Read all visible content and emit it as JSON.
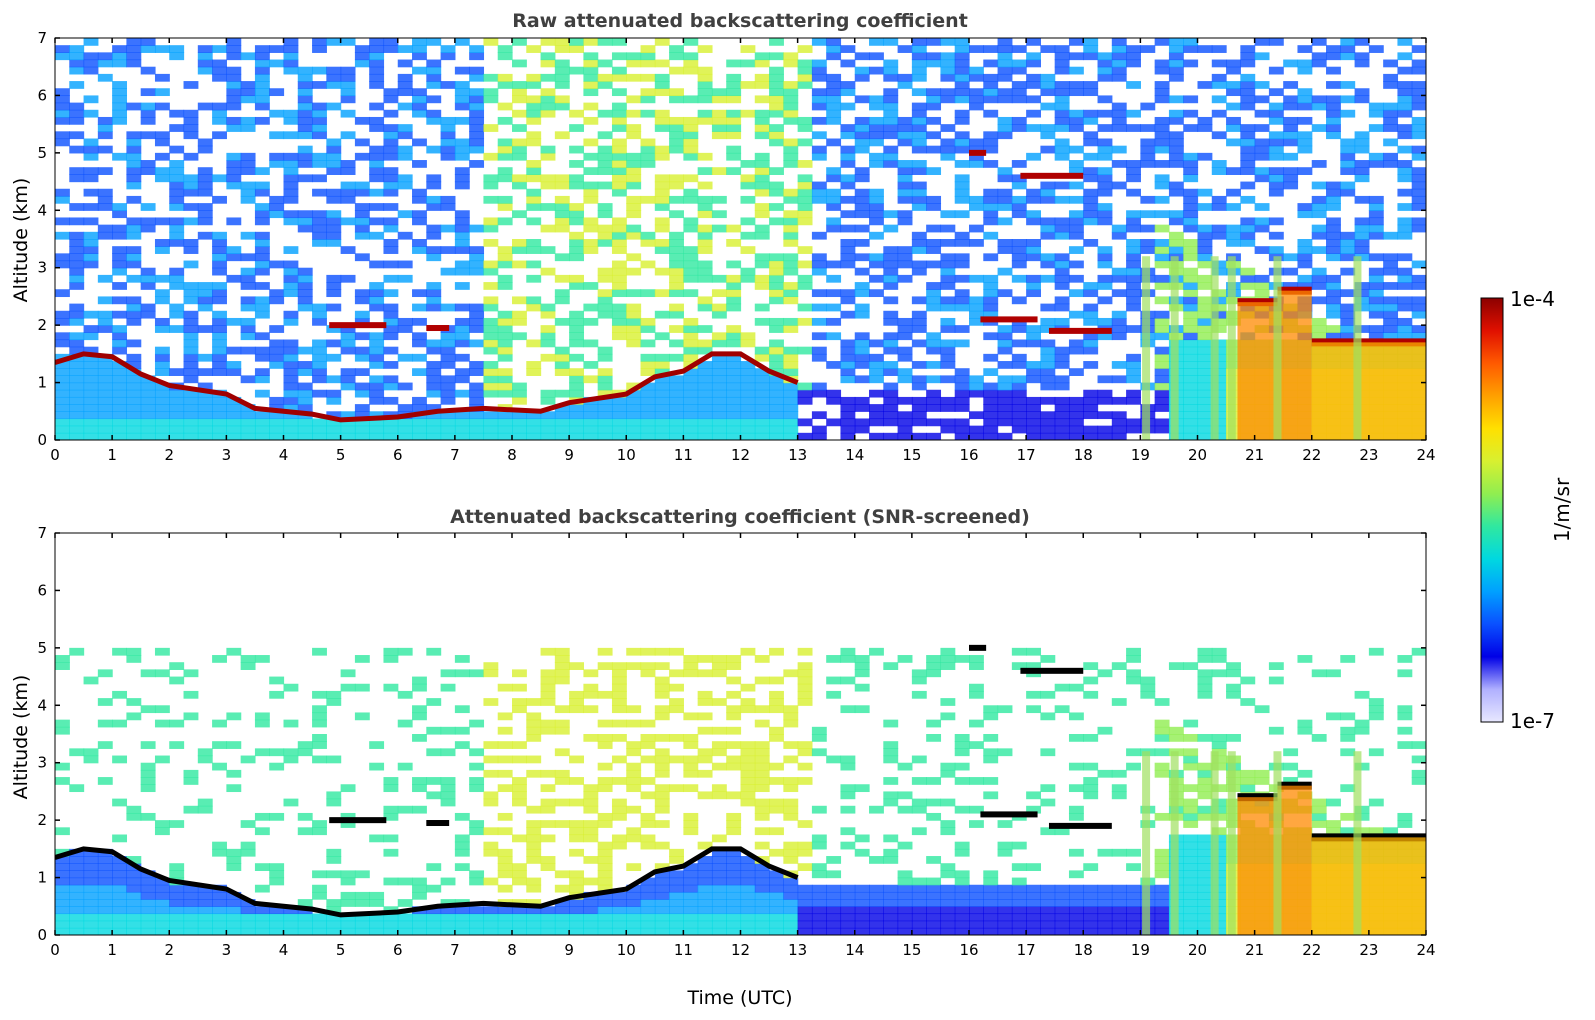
{
  "chart_data": [
    {
      "type": "heatmap",
      "title": "Raw attenuated backscattering coefficient",
      "xlabel": "",
      "ylabel": "Altitude (km)",
      "xlim": [
        0,
        24
      ],
      "ylim": [
        0,
        7
      ],
      "xticks": [
        "0",
        "1",
        "2",
        "3",
        "4",
        "5",
        "6",
        "7",
        "8",
        "9",
        "10",
        "11",
        "12",
        "13",
        "14",
        "15",
        "16",
        "17",
        "18",
        "19",
        "20",
        "21",
        "22",
        "23",
        "24"
      ],
      "yticks": [
        "0",
        "1",
        "2",
        "3",
        "4",
        "5",
        "6",
        "7"
      ],
      "features": {
        "boundary_layer_top_km": [
          [
            0,
            1.35
          ],
          [
            0.5,
            1.5
          ],
          [
            1,
            1.45
          ],
          [
            1.5,
            1.15
          ],
          [
            2,
            0.95
          ],
          [
            3,
            0.8
          ],
          [
            3.5,
            0.55
          ],
          [
            4.5,
            0.45
          ],
          [
            5,
            0.35
          ],
          [
            6,
            0.4
          ],
          [
            6.7,
            0.5
          ],
          [
            7.5,
            0.55
          ],
          [
            8.5,
            0.5
          ],
          [
            9,
            0.65
          ],
          [
            10,
            0.8
          ],
          [
            10.5,
            1.1
          ],
          [
            11,
            1.2
          ],
          [
            11.5,
            1.5
          ],
          [
            12,
            1.5
          ],
          [
            12.5,
            1.2
          ],
          [
            13,
            1.0
          ]
        ],
        "cloud_layers": [
          {
            "t_start": 4.8,
            "t_end": 5.8,
            "alt_km": 2.0
          },
          {
            "t_start": 6.5,
            "t_end": 6.9,
            "alt_km": 1.95
          },
          {
            "t_start": 16.0,
            "t_end": 16.3,
            "alt_km": 5.0
          },
          {
            "t_start": 16.9,
            "t_end": 18.0,
            "alt_km": 4.6
          },
          {
            "t_start": 16.2,
            "t_end": 17.2,
            "alt_km": 2.1
          },
          {
            "t_start": 17.4,
            "t_end": 18.5,
            "alt_km": 1.9
          },
          {
            "t_start": 20.7,
            "t_end": 21.4,
            "alt_km": 2.4
          },
          {
            "t_start": 21.4,
            "t_end": 22.0,
            "alt_km": 2.6
          },
          {
            "t_start": 22.0,
            "t_end": 24.0,
            "alt_km": 1.7
          }
        ],
        "precip_shafts_t": [
          19.1,
          19.6,
          20.3,
          20.6,
          21.4,
          22.8
        ]
      }
    },
    {
      "type": "heatmap",
      "title": "Attenuated backscattering coefficient (SNR-screened)",
      "xlabel": "Time (UTC)",
      "ylabel": "Altitude (km)",
      "xlim": [
        0,
        24
      ],
      "ylim": [
        0,
        7
      ],
      "xticks": [
        "0",
        "1",
        "2",
        "3",
        "4",
        "5",
        "6",
        "7",
        "8",
        "9",
        "10",
        "11",
        "12",
        "13",
        "14",
        "15",
        "16",
        "17",
        "18",
        "19",
        "20",
        "21",
        "22",
        "23",
        "24"
      ],
      "yticks": [
        "0",
        "1",
        "2",
        "3",
        "4",
        "5",
        "6",
        "7"
      ]
    }
  ],
  "colorbar": {
    "label": "1/m/sr",
    "max_label": "1e-4",
    "min_label": "1e-7",
    "colors": [
      "#e8e8ff",
      "#b0b0ff",
      "#0000e6",
      "#0a50ff",
      "#00a0ff",
      "#00d8e0",
      "#30e8a0",
      "#90ee50",
      "#d8f030",
      "#ffe000",
      "#ffa000",
      "#ff5a00",
      "#e01000",
      "#8c0000"
    ]
  }
}
